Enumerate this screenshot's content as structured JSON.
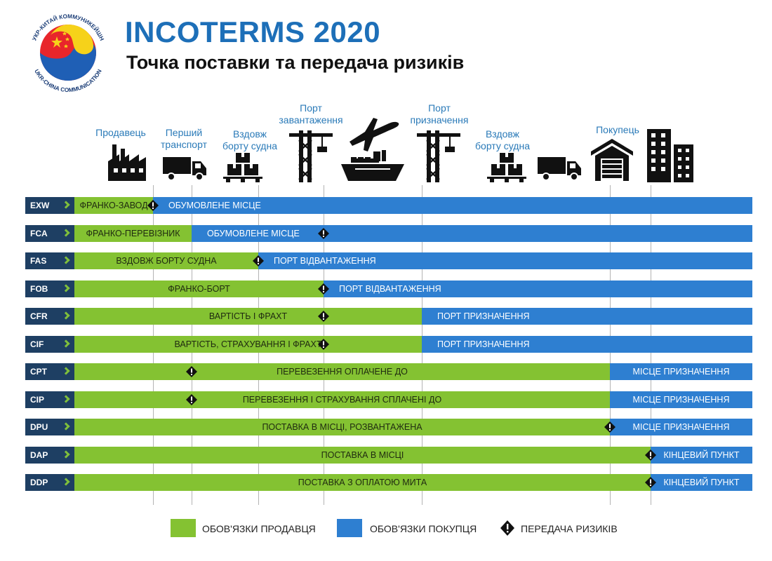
{
  "header": {
    "title": "INCOTERMS 2020",
    "subtitle": "Точка поставки та передача ризиків",
    "logo_text_top": "УКР-КИТАЙ КОММУНИКЕЙШН",
    "logo_text_bottom": "UKR-CHINA COMMUNICATION"
  },
  "colors": {
    "seller": "#84c232",
    "buyer": "#2e7fd1",
    "code_bg": "#1e3f63",
    "title": "#1d6fb8",
    "stage_label": "#2a7ab8"
  },
  "stages": [
    {
      "id": "seller",
      "label": "Продавець",
      "icon": "factory-icon"
    },
    {
      "id": "first-carrier",
      "label": "Перший\nтранспорт",
      "icon": "truck-icon"
    },
    {
      "id": "alongside-1",
      "label": "Вздовж\nборту судна",
      "icon": "boxes-icon"
    },
    {
      "id": "loading-port",
      "label": "Порт\nзавантаження",
      "icon": "crane-icon"
    },
    {
      "id": "transit",
      "label": "",
      "icon": "plane-ship-icon"
    },
    {
      "id": "destination-port",
      "label": "Порт\nпризначення",
      "icon": "crane-icon"
    },
    {
      "id": "alongside-2",
      "label": "Вздовж\nборту судна",
      "icon": "boxes-icon"
    },
    {
      "id": "truck-2",
      "label": "",
      "icon": "truck-icon"
    },
    {
      "id": "buyer",
      "label": "Покупець",
      "icon": "warehouse-icon"
    },
    {
      "id": "final",
      "label": "",
      "icon": "buildings-icon"
    }
  ],
  "terms": [
    {
      "code": "EXW",
      "seller_text": "ФРАНКО-ЗАВОД",
      "buyer_text": "ОБУМОВЛЕНЕ МІСЦЕ",
      "split_stage": 1,
      "risk_stage": 1
    },
    {
      "code": "FCA",
      "seller_text": "ФРАНКО-ПЕРЕВІЗНИК",
      "buyer_text": "ОБУМОВЛЕНЕ МІСЦЕ",
      "split_stage": 2,
      "risk_stage": 4
    },
    {
      "code": "FAS",
      "seller_text": "ВЗДОВЖ БОРТУ СУДНА",
      "buyer_text": "ПОРТ ВІДВАНТАЖЕННЯ",
      "split_stage": 3,
      "risk_stage": 3
    },
    {
      "code": "FOB",
      "seller_text": "ФРАНКО-БОРТ",
      "buyer_text": "ПОРТ ВІДВАНТАЖЕННЯ",
      "split_stage": 4,
      "risk_stage": 4
    },
    {
      "code": "CFR",
      "seller_text": "ВАРТІСТЬ І ФРАХТ",
      "buyer_text": "ПОРТ ПРИЗНАЧЕННЯ",
      "split_stage": 5,
      "risk_stage": 4
    },
    {
      "code": "CIF",
      "seller_text": "ВАРТІСТЬ, СТРАХУВАННЯ І ФРАХТ",
      "buyer_text": "ПОРТ ПРИЗНАЧЕННЯ",
      "split_stage": 5,
      "risk_stage": 4
    },
    {
      "code": "CPT",
      "seller_text": "ПЕРЕВЕЗЕННЯ ОПЛАЧЕНЕ ДО",
      "buyer_text": "МІСЦЕ ПРИЗНАЧЕННЯ",
      "split_stage": 6,
      "risk_stage": 2
    },
    {
      "code": "CIP",
      "seller_text": "ПЕРЕВЕЗЕННЯ І СТРАХУВАННЯ СПЛАЧЕНІ ДО",
      "buyer_text": "МІСЦЕ ПРИЗНАЧЕННЯ",
      "split_stage": 6,
      "risk_stage": 2
    },
    {
      "code": "DPU",
      "seller_text": "ПОСТАВКА В МІСЦІ, РОЗВАНТАЖЕНА",
      "buyer_text": "МІСЦЕ ПРИЗНАЧЕННЯ",
      "split_stage": 6,
      "risk_stage": 6
    },
    {
      "code": "DAP",
      "seller_text": "ПОСТАВКА В МІСЦІ",
      "buyer_text": "КІНЦЕВИЙ ПУНКТ",
      "split_stage": 7,
      "risk_stage": 7
    },
    {
      "code": "DDP",
      "seller_text": "ПОСТАВКА З ОПЛАТОЮ МИТА",
      "buyer_text": "КІНЦЕВИЙ ПУНКТ",
      "split_stage": 7,
      "risk_stage": 7
    }
  ],
  "legend": {
    "seller": "ОБОВ'ЯЗКИ ПРОДАВЦЯ",
    "buyer": "ОБОВ'ЯЗКИ ПОКУПЦЯ",
    "risk": "ПЕРЕДАЧА РИЗИКІВ"
  }
}
